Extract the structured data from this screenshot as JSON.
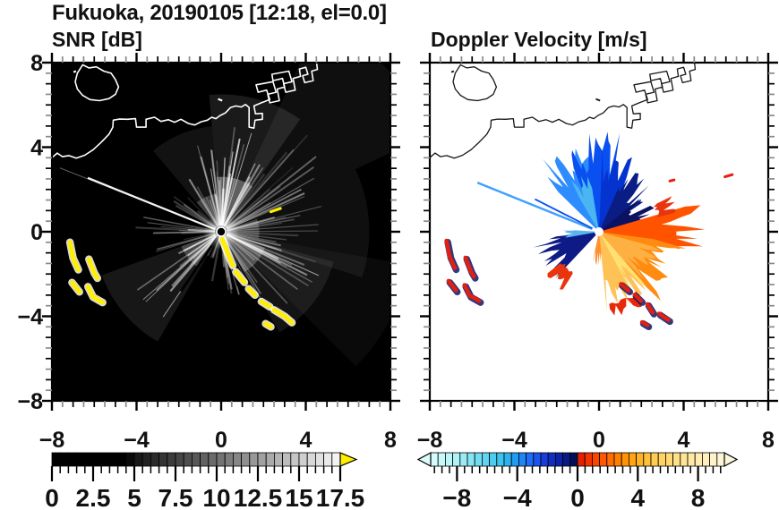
{
  "title": "Fukuoka, 20190105 [12:18, el=0.0]",
  "panels": {
    "snr_title": "SNR [dB]",
    "doppler_title": "Doppler Velocity [m/s]"
  },
  "axis": {
    "xlim": [
      -8,
      8
    ],
    "ylim": [
      -8,
      8
    ],
    "xtick_labels": [
      {
        "v": -8,
        "t": "−8"
      },
      {
        "v": -4,
        "t": "−4"
      },
      {
        "v": 0,
        "t": "0"
      },
      {
        "v": 4,
        "t": "4"
      },
      {
        "v": 8,
        "t": "8"
      }
    ],
    "ytick_labels": [
      {
        "v": 8,
        "t": "8"
      },
      {
        "v": 4,
        "t": "4"
      },
      {
        "v": 0,
        "t": "0"
      },
      {
        "v": -4,
        "t": "−4"
      },
      {
        "v": -8,
        "t": "−8"
      }
    ],
    "major_step": 4,
    "minor_step": 0.5
  },
  "coast": {
    "island": [
      [
        -6.55,
        7.9
      ],
      [
        -6.25,
        7.75
      ],
      [
        -5.9,
        7.8
      ],
      [
        -5.55,
        7.6
      ],
      [
        -5.2,
        7.5
      ],
      [
        -5.0,
        7.2
      ],
      [
        -4.85,
        6.85
      ],
      [
        -5.0,
        6.5
      ],
      [
        -5.3,
        6.3
      ],
      [
        -5.75,
        6.2
      ],
      [
        -6.2,
        6.25
      ],
      [
        -6.55,
        6.45
      ],
      [
        -6.8,
        6.75
      ],
      [
        -6.9,
        7.1
      ],
      [
        -6.8,
        7.5
      ]
    ],
    "main": [
      [
        -8.1,
        3.42
      ],
      [
        -7.75,
        3.72
      ],
      [
        -7.5,
        3.55
      ],
      [
        -7.2,
        3.6
      ],
      [
        -6.85,
        3.48
      ],
      [
        -6.45,
        3.62
      ],
      [
        -6.05,
        3.88
      ],
      [
        -5.65,
        4.25
      ],
      [
        -5.3,
        4.62
      ],
      [
        -5.12,
        4.95
      ],
      [
        -5.1,
        5.28
      ],
      [
        -4.8,
        5.33
      ],
      [
        -4.42,
        5.32
      ],
      [
        -4.05,
        5.35
      ],
      [
        -4.0,
        4.95
      ],
      [
        -3.55,
        4.95
      ],
      [
        -3.55,
        5.32
      ],
      [
        -3.15,
        5.42
      ],
      [
        -2.85,
        5.22
      ],
      [
        -2.5,
        5.3
      ],
      [
        -2.2,
        5.18
      ],
      [
        -1.9,
        5.32
      ],
      [
        -1.55,
        5.12
      ],
      [
        -1.25,
        5.05
      ],
      [
        -0.95,
        5.2
      ],
      [
        -0.65,
        5.28
      ],
      [
        -0.45,
        5.42
      ],
      [
        -0.25,
        5.35
      ],
      [
        -0.05,
        5.5
      ],
      [
        0.2,
        5.62
      ],
      [
        0.45,
        5.88
      ],
      [
        0.7,
        5.95
      ],
      [
        0.95,
        5.9
      ],
      [
        1.15,
        6.02
      ],
      [
        1.32,
        5.88
      ],
      [
        1.32,
        4.95
      ],
      [
        1.55,
        4.9
      ],
      [
        1.6,
        5.28
      ],
      [
        1.95,
        5.32
      ],
      [
        1.95,
        5.6
      ],
      [
        1.62,
        5.58
      ],
      [
        1.55,
        5.95
      ],
      [
        1.9,
        6.1
      ],
      [
        2.3,
        6.25
      ],
      [
        2.15,
        6.7
      ],
      [
        1.75,
        6.6
      ],
      [
        1.65,
        6.95
      ],
      [
        2.45,
        7.1
      ],
      [
        2.6,
        6.6
      ],
      [
        2.2,
        6.5
      ],
      [
        2.3,
        6.1
      ],
      [
        2.75,
        6.2
      ],
      [
        2.65,
        6.75
      ],
      [
        3.0,
        6.85
      ],
      [
        2.9,
        7.25
      ],
      [
        2.45,
        7.15
      ],
      [
        2.4,
        7.45
      ],
      [
        3.2,
        7.6
      ],
      [
        3.35,
        7.1
      ],
      [
        2.95,
        7.0
      ],
      [
        3.05,
        6.6
      ],
      [
        3.5,
        6.7
      ],
      [
        3.4,
        7.25
      ],
      [
        3.75,
        7.35
      ],
      [
        3.7,
        7.7
      ],
      [
        4.0,
        7.78
      ],
      [
        4.1,
        7.45
      ],
      [
        3.85,
        7.38
      ],
      [
        3.95,
        7.05
      ],
      [
        4.35,
        7.15
      ],
      [
        4.28,
        7.6
      ],
      [
        4.55,
        7.68
      ],
      [
        4.5,
        8.1
      ]
    ],
    "dashes": [
      [
        [
          -0.15,
          6.28
        ],
        [
          0.05,
          6.2
        ]
      ],
      [
        [
          -6.98,
          7.55
        ],
        [
          -6.86,
          7.6
        ]
      ]
    ]
  },
  "snr": {
    "bg": "#000000",
    "coast_color": "#ffffff",
    "clutter_color": "#ffee00",
    "haze": [
      {
        "a1": 25,
        "a2": 65,
        "r": 11,
        "o": 0.06
      },
      {
        "a1": 55,
        "a2": 95,
        "r": 6.5,
        "o": 0.1
      },
      {
        "a1": 95,
        "a2": 130,
        "r": 5,
        "o": 0.07
      },
      {
        "a1": 200,
        "a2": 240,
        "r": 6,
        "o": 0.09
      },
      {
        "a1": 300,
        "a2": 345,
        "r": 5.5,
        "o": 0.08
      },
      {
        "a1": -18,
        "a2": 25,
        "r": 7,
        "o": 0.06
      },
      {
        "a1": 315,
        "a2": 350,
        "r": 9,
        "o": 0.04
      },
      {
        "a1": 55,
        "a2": 95,
        "r": 2.6,
        "o": 0.3
      },
      {
        "a1": 300,
        "a2": 340,
        "r": 2.2,
        "o": 0.25
      },
      {
        "a1": 200,
        "a2": 236,
        "r": 2.0,
        "o": 0.22
      },
      {
        "a1": -10,
        "a2": 20,
        "r": 1.8,
        "o": 0.2
      },
      {
        "a1": 96,
        "a2": 130,
        "r": 1.8,
        "o": 0.2
      }
    ],
    "fans": [
      {
        "a1": 55,
        "a2": 92,
        "n": 18,
        "r0": 1.8,
        "r1": 5.4,
        "o0": 0.25,
        "o1": 0.75
      },
      {
        "a1": 92,
        "a2": 126,
        "n": 13,
        "r0": 1.6,
        "r1": 4.6,
        "o0": 0.18,
        "o1": 0.55
      },
      {
        "a1": 126,
        "a2": 152,
        "n": 6,
        "r0": 1.2,
        "r1": 3.0,
        "o0": 0.1,
        "o1": 0.3
      },
      {
        "a1": 168,
        "a2": 200,
        "n": 11,
        "r0": 1.4,
        "r1": 4.2,
        "o0": 0.15,
        "o1": 0.5
      },
      {
        "a1": 200,
        "a2": 236,
        "n": 13,
        "r0": 1.8,
        "r1": 5.0,
        "o0": 0.2,
        "o1": 0.6
      },
      {
        "a1": 238,
        "a2": 262,
        "n": 5,
        "r0": 0.8,
        "r1": 2.4,
        "o0": 0.08,
        "o1": 0.22
      },
      {
        "a1": 274,
        "a2": 300,
        "n": 9,
        "r0": 1.4,
        "r1": 3.8,
        "o0": 0.15,
        "o1": 0.45
      },
      {
        "a1": 300,
        "a2": 336,
        "n": 15,
        "r0": 1.8,
        "r1": 5.2,
        "o0": 0.22,
        "o1": 0.65
      },
      {
        "a1": 336,
        "a2": 362,
        "n": 10,
        "r0": 1.8,
        "r1": 4.8,
        "o0": 0.15,
        "o1": 0.45
      },
      {
        "a1": 2,
        "a2": 32,
        "n": 12,
        "r0": 1.8,
        "r1": 5.8,
        "o0": 0.15,
        "o1": 0.5
      },
      {
        "a1": 32,
        "a2": 55,
        "n": 9,
        "r0": 1.8,
        "r1": 6.4,
        "o0": 0.1,
        "o1": 0.35
      }
    ],
    "rays": [
      {
        "a": 158,
        "r": 6.8,
        "w": 2.2,
        "o": 0.95
      },
      {
        "a": 158.4,
        "r": 8.2,
        "w": 1.0,
        "o": 0.4
      }
    ],
    "spokes": [
      {
        "a": 236,
        "r0": 0.3,
        "r": 3.4,
        "w": 2.6
      },
      {
        "a": 244,
        "r0": 0.3,
        "r": 5.3,
        "w": 1.6
      },
      {
        "a": 287,
        "r0": 0.4,
        "r": 2.7,
        "w": 2.0
      }
    ],
    "clutter_chains": [
      [
        [
          -7.15,
          -0.5
        ],
        [
          -7.0,
          -1.25
        ],
        [
          -6.75,
          -1.8
        ]
      ],
      [
        [
          -6.25,
          -1.3
        ],
        [
          -6.0,
          -1.95
        ],
        [
          -5.85,
          -2.2
        ]
      ],
      [
        [
          -7.05,
          -2.4
        ],
        [
          -6.7,
          -2.85
        ]
      ],
      [
        [
          -6.3,
          -2.6
        ],
        [
          -6.05,
          -3.1
        ],
        [
          -5.6,
          -3.35
        ]
      ],
      [
        [
          0.05,
          -0.35
        ],
        [
          0.3,
          -1.0
        ],
        [
          0.55,
          -1.6
        ]
      ],
      [
        [
          0.7,
          -1.9
        ],
        [
          1.1,
          -2.4
        ]
      ],
      [
        [
          1.3,
          -2.7
        ],
        [
          1.6,
          -3.0
        ]
      ],
      [
        [
          1.9,
          -3.3
        ],
        [
          2.3,
          -3.55
        ]
      ],
      [
        [
          2.5,
          -3.7
        ],
        [
          3.0,
          -4.0
        ],
        [
          3.35,
          -4.3
        ]
      ],
      [
        [
          2.1,
          -4.35
        ],
        [
          2.35,
          -4.5
        ]
      ]
    ],
    "marks": [
      [
        [
          2.35,
          0.95
        ],
        [
          2.8,
          1.1
        ]
      ]
    ]
  },
  "doppler": {
    "bg": "#ffffff",
    "coast_color": "#151515",
    "wedges": [
      {
        "a1": 96,
        "a2": 135,
        "r": 4.4,
        "j": 0.45,
        "c": "#2e8cff",
        "s": 11
      },
      {
        "a1": 76,
        "a2": 112,
        "r": 4.9,
        "j": 0.4,
        "c": "#0a50f0",
        "s": 12
      },
      {
        "a1": 58,
        "a2": 88,
        "r": 4.1,
        "j": 0.45,
        "c": "#0533cf",
        "s": 13
      },
      {
        "a1": 100,
        "a2": 120,
        "r": 3.0,
        "j": 0.4,
        "c": "#49b6f2",
        "s": 19
      },
      {
        "a1": 34,
        "a2": 66,
        "r": 3.4,
        "j": 0.5,
        "c": "#0a1d85",
        "s": 14
      },
      {
        "a1": 8,
        "a2": 40,
        "r": 2.9,
        "j": 0.5,
        "c": "#0c1262",
        "s": 15
      },
      {
        "a1": 186,
        "a2": 226,
        "r": 3.3,
        "j": 0.45,
        "c": "#0e1a86",
        "s": 16
      },
      {
        "a1": 176,
        "a2": 190,
        "r": 1.9,
        "j": 0.4,
        "c": "#5ab4f0",
        "s": 17
      },
      {
        "a1": -12,
        "a2": 16,
        "r": 5.2,
        "j": 0.55,
        "c": "#ff5300",
        "s": 21
      },
      {
        "a1": -52,
        "a2": -8,
        "r": 4.6,
        "j": 0.5,
        "c": "#ff8c10",
        "s": 22
      },
      {
        "a1": -58,
        "a2": -16,
        "r": 3.1,
        "j": 0.4,
        "c": "#ffb042",
        "s": 23
      },
      {
        "a1": -84,
        "a2": -48,
        "r": 3.9,
        "j": 0.5,
        "c": "#ffc257",
        "s": 24
      },
      {
        "a1": -62,
        "a2": -50,
        "r": 3.3,
        "j": 0.3,
        "c": "#ffe070",
        "s": 25
      },
      {
        "a1": -102,
        "a2": -84,
        "r": 1.7,
        "j": 0.5,
        "c": "#ff9030",
        "s": 26
      }
    ],
    "rings": [
      {
        "a1": 219,
        "a2": 238,
        "r0": 2.3,
        "r1": 3.35,
        "c": "#e8350e",
        "s": 31
      },
      {
        "a1": -82,
        "a2": -58,
        "r0": 3.45,
        "r1": 4.2,
        "c": "#e82808",
        "s": 32
      },
      {
        "a1": 14,
        "a2": 26,
        "r0": 2.9,
        "r1": 4.0,
        "c": "#e8350e",
        "s": 33
      }
    ],
    "rays": [
      {
        "a": 158,
        "r": 6.2,
        "w": 2.4,
        "c": "#3fa0ff"
      },
      {
        "a": 153,
        "r": 3.4,
        "w": 1.8,
        "c": "#0a50f0"
      }
    ],
    "patch_main": "#e41f10",
    "patch_fringe": "#0a1668",
    "patch_chains": [
      [
        [
          -7.15,
          -0.5
        ],
        [
          -7.0,
          -1.25
        ],
        [
          -6.75,
          -1.8
        ]
      ],
      [
        [
          -6.25,
          -1.3
        ],
        [
          -6.0,
          -1.95
        ],
        [
          -5.85,
          -2.2
        ]
      ],
      [
        [
          -7.05,
          -2.4
        ],
        [
          -6.7,
          -2.85
        ]
      ],
      [
        [
          -6.3,
          -2.6
        ],
        [
          -6.05,
          -3.1
        ],
        [
          -5.6,
          -3.35
        ]
      ],
      [
        [
          1.1,
          -2.55
        ],
        [
          1.45,
          -2.85
        ]
      ],
      [
        [
          1.75,
          -3.05
        ],
        [
          2.05,
          -3.35
        ]
      ],
      [
        [
          2.35,
          -3.5
        ],
        [
          2.6,
          -3.9
        ]
      ],
      [
        [
          2.9,
          -3.95
        ],
        [
          3.35,
          -4.25
        ]
      ],
      [
        [
          2.1,
          -4.35
        ],
        [
          2.35,
          -4.5
        ]
      ]
    ],
    "marks": [
      [
        [
          5.95,
          2.6
        ],
        [
          6.3,
          2.7
        ]
      ],
      [
        [
          3.35,
          2.4
        ],
        [
          3.55,
          2.45
        ]
      ]
    ]
  },
  "colorbar_snr": {
    "vmin": 0,
    "vmax": 17.5,
    "segments": 35,
    "major_step": 2.5,
    "minor_step": 0.5,
    "stops": [
      [
        0,
        "#000000"
      ],
      [
        4.5,
        "#000000"
      ],
      [
        5,
        "#141414"
      ],
      [
        17.5,
        "#f8f8f8"
      ]
    ],
    "over_color": "#ffee00",
    "labels": [
      {
        "v": 0,
        "t": "0"
      },
      {
        "v": 2.5,
        "t": "2.5"
      },
      {
        "v": 5,
        "t": "5"
      },
      {
        "v": 7.5,
        "t": "7.5"
      },
      {
        "v": 10,
        "t": "10"
      },
      {
        "v": 12.5,
        "t": "12.5"
      },
      {
        "v": 15,
        "t": "15"
      },
      {
        "v": 17.5,
        "t": "17.5"
      }
    ]
  },
  "colorbar_doppler": {
    "vmin": -9.75,
    "vmax": 9.75,
    "segments": 40,
    "minor_step": 0.5,
    "majors": [
      -8,
      -4,
      0,
      4,
      8
    ],
    "stops_neg": [
      [
        -9.75,
        "#dcfdfd"
      ],
      [
        -8,
        "#aef2f6"
      ],
      [
        -6.5,
        "#6fdcf2"
      ],
      [
        -5,
        "#35c3ee"
      ],
      [
        -4,
        "#1e96f2"
      ],
      [
        -3,
        "#1f64f8"
      ],
      [
        -2.25,
        "#1840dc"
      ],
      [
        -1.5,
        "#0e28b4"
      ],
      [
        -0.75,
        "#071a88"
      ],
      [
        0,
        "#03093f"
      ]
    ],
    "stops_pos": [
      [
        0,
        "#e01600"
      ],
      [
        1,
        "#f83c00"
      ],
      [
        2,
        "#ff6400"
      ],
      [
        3,
        "#ff8c00"
      ],
      [
        4,
        "#ffb020"
      ],
      [
        5,
        "#ffc94e"
      ],
      [
        6.5,
        "#ffdf85"
      ],
      [
        8,
        "#ffecb0"
      ],
      [
        9.75,
        "#fbf6dc"
      ]
    ],
    "under_color": "#dcfdfd",
    "over_color": "#fbf6dc",
    "labels": [
      {
        "v": -8,
        "t": "−8"
      },
      {
        "v": -4,
        "t": "−4"
      },
      {
        "v": 0,
        "t": "0"
      },
      {
        "v": 4,
        "t": "4"
      },
      {
        "v": 8,
        "t": "8"
      }
    ]
  },
  "chart_data": [
    {
      "type": "heatmap",
      "title": "SNR [dB]",
      "xlim": [
        -8,
        8
      ],
      "ylim": [
        -8,
        8
      ],
      "xticks": [
        -8,
        -4,
        0,
        4,
        8
      ],
      "yticks": [
        -8,
        -4,
        0,
        4,
        8
      ],
      "colorbar": {
        "range": [
          0,
          17.5
        ],
        "tick_labels": [
          0,
          2.5,
          5,
          7.5,
          10,
          12.5,
          15,
          17.5
        ],
        "colormap": "black-to-white grayscale, yellow over-range arrow"
      },
      "content": "Radar PPI centered at (0,0): bright white radial echo streaks in all sectors (strongest NNE, SE, SW, and a long narrow ray toward WNW), two dark shadow spokes toward SSW, saturated yellow clutter arcs at left (-7.1,-0.5)..(-5.6,-3.4) and along a SE line from center to (3.3,-4.3); white coastline with island, bay notch and harbor piers on black sea/land background."
    },
    {
      "type": "heatmap",
      "title": "Doppler Velocity [m/s]",
      "xlim": [
        -8,
        8
      ],
      "ylim": [
        -8,
        8
      ],
      "xticks": [
        -8,
        -4,
        0,
        4,
        8
      ],
      "yticks": [
        -8,
        -4,
        0,
        4,
        8
      ],
      "colorbar": {
        "range": [
          -10,
          10
        ],
        "tick_labels": [
          -8,
          -4,
          0,
          4,
          8
        ],
        "colormap": "pale-cyan to dark-navy (negative), red to cream (positive), arrows both ends"
      },
      "content": "Doppler velocity fan around radar at (0,0): blue lobes (toward radar, -2..-8 m/s) to N/NW/NE, dark navy wedge to W-SW with red fringe, red-orange-yellow lobes (away, +2..+8 m/s) to E/SE/S reaching x=+5; isolated red/navy clutter patches at far left and along SE line; black coastline on white."
    }
  ]
}
